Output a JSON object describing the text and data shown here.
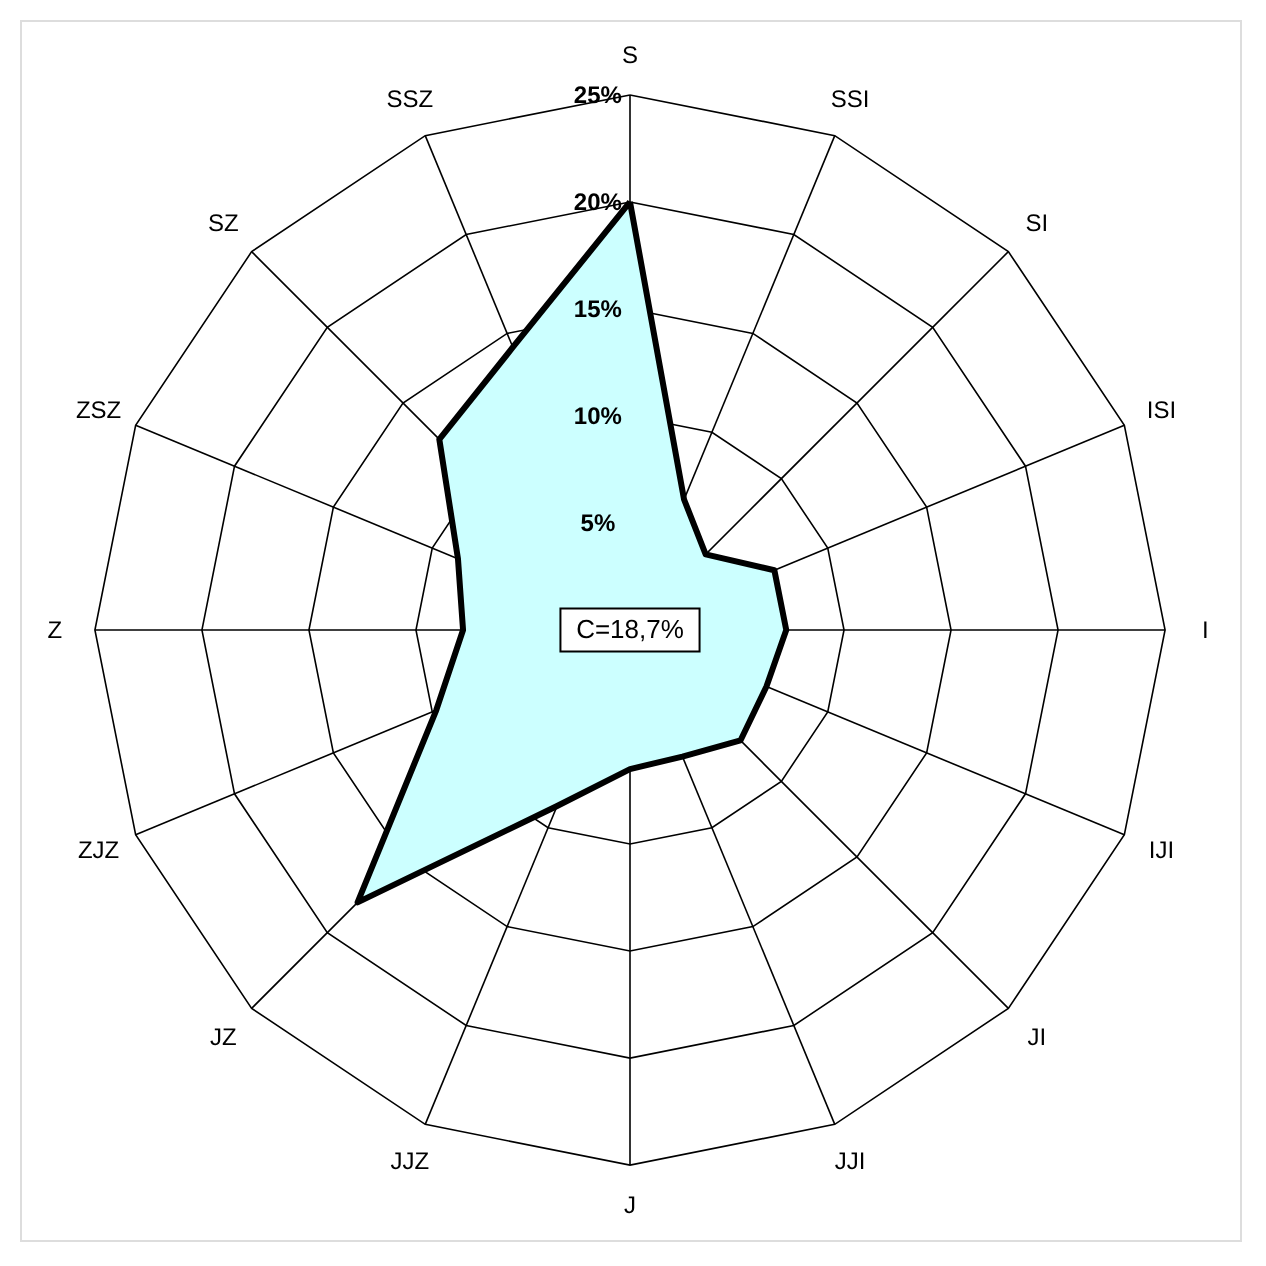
{
  "chart_data": {
    "type": "radar",
    "categories": [
      "S",
      "SSI",
      "SI",
      "ISI",
      "I",
      "IJI",
      "JI",
      "JJI",
      "J",
      "JJZ",
      "JZ",
      "ZJZ",
      "Z",
      "ZSZ",
      "SZ",
      "SSZ"
    ],
    "series": [
      {
        "color": "#ccffff",
        "values": [
          20,
          6.6,
          5,
          7.3,
          7.3,
          6.9,
          7.3,
          6.4,
          6.5,
          8.9,
          18,
          9.8,
          7.8,
          8.7,
          12.6,
          14.3
        ]
      }
    ],
    "ylim": [
      0,
      25
    ],
    "yticks": [
      {
        "value": 5,
        "label": "5%"
      },
      {
        "value": 10,
        "label": "10%"
      },
      {
        "value": 15,
        "label": "15%"
      },
      {
        "value": 20,
        "label": "20%"
      },
      {
        "value": 25,
        "label": "25%"
      }
    ],
    "grid": true,
    "annotations": [
      "C=18,7%"
    ]
  }
}
